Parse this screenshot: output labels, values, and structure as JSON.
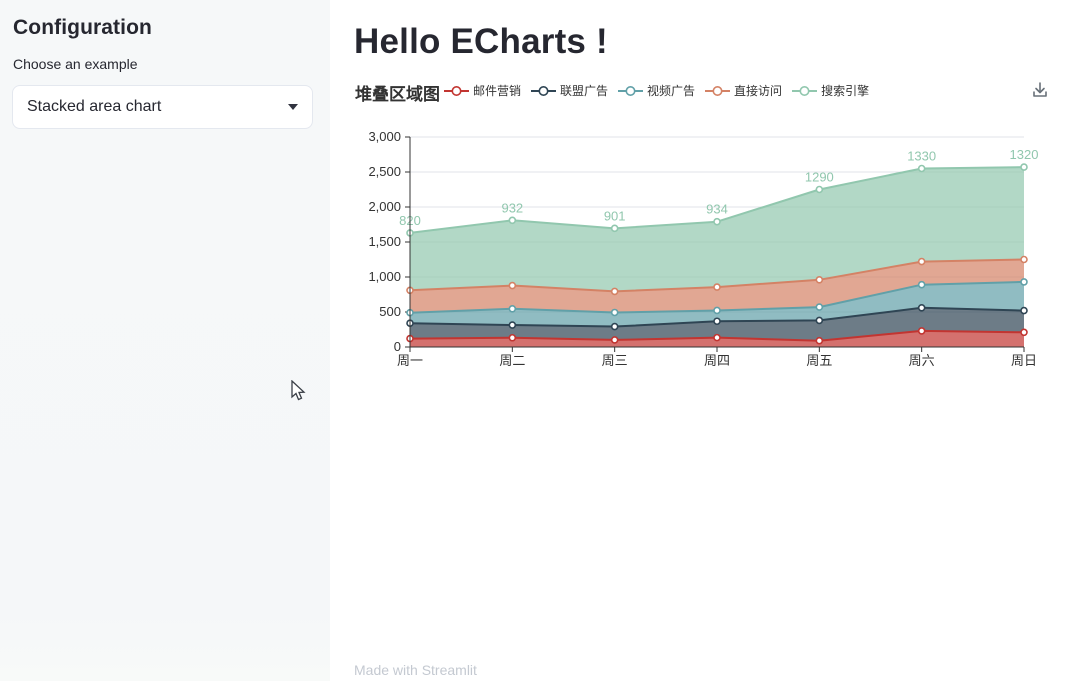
{
  "sidebar": {
    "title": "Configuration",
    "choose_label": "Choose an example",
    "select": {
      "value": "Stacked area chart",
      "caret_icon": "caret-down-icon"
    }
  },
  "main": {
    "title": "Hello ECharts !",
    "footer": "Made with Streamlit"
  },
  "toolbox": {
    "icon": "save-as-image-icon",
    "color": "#687078"
  },
  "cursor_icon": "arrow-cursor",
  "chart_data": {
    "type": "area",
    "stacked": true,
    "title": "堆叠区域图",
    "categories": [
      "周一",
      "周二",
      "周三",
      "周四",
      "周五",
      "周六",
      "周日"
    ],
    "series": [
      {
        "name": "邮件营销",
        "color": "#c23531",
        "values": [
          120,
          132,
          101,
          134,
          90,
          230,
          210
        ]
      },
      {
        "name": "联盟广告",
        "color": "#2f4554",
        "values": [
          220,
          182,
          191,
          234,
          290,
          330,
          310
        ]
      },
      {
        "name": "视频广告",
        "color": "#61a0a8",
        "values": [
          150,
          232,
          201,
          154,
          190,
          330,
          410
        ]
      },
      {
        "name": "直接访问",
        "color": "#d48265",
        "values": [
          320,
          332,
          301,
          334,
          390,
          330,
          320
        ]
      },
      {
        "name": "搜索引擎",
        "color": "#91c7ae",
        "values": [
          820,
          932,
          901,
          934,
          1290,
          1330,
          1320
        ],
        "show_labels": true
      }
    ],
    "visible_data_labels": [
      820,
      932,
      901,
      934,
      1290,
      1330,
      1320
    ],
    "ylim": [
      0,
      3000
    ],
    "y_ticks": [
      0,
      500,
      1000,
      1500,
      2000,
      2500,
      3000
    ],
    "legend_position": "top",
    "grid": true,
    "area_opacity": 0.7,
    "axis_color": "#333333",
    "gridline_color": "#e0e3e8",
    "label_font_size": 12
  }
}
